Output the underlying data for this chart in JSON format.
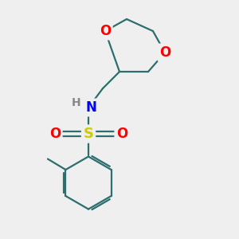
{
  "background_color": "#efefef",
  "bond_color": "#2d6e6e",
  "atom_colors": {
    "O": "#ff0000",
    "N": "#0000ff",
    "S": "#cccc00",
    "H": "#888888",
    "C": "#2d6e6e"
  },
  "figsize": [
    3.0,
    3.0
  ],
  "dpi": 100
}
